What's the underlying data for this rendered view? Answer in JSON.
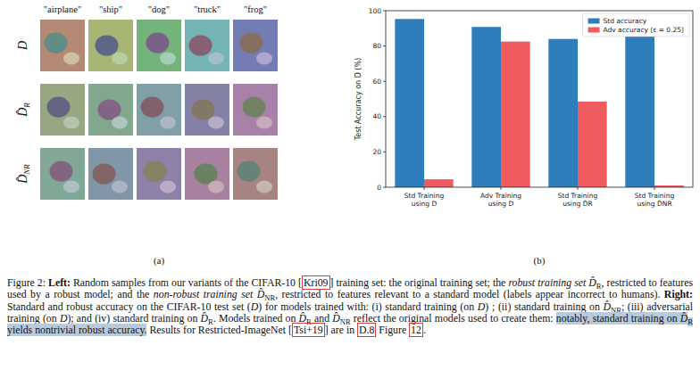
{
  "image_grid": {
    "columns": [
      "\"airplane\"",
      "\"ship\"",
      "\"dog\"",
      "\"truck\"",
      "\"frog\""
    ],
    "rows": [
      {
        "symbol": "D"
      },
      {
        "symbol": "D̂",
        "subscript": "R"
      },
      {
        "symbol": "D̂",
        "subscript": "NR"
      }
    ]
  },
  "panel_labels": [
    "(a)",
    "(b)"
  ],
  "chart_data": {
    "type": "bar",
    "y_label": "Test Accuracy on D (%)",
    "categories": [
      "Std Training\nusing D",
      "Adv Training\nusing D",
      "Std Training\nusing D̂R",
      "Std Training\nusing D̂NR"
    ],
    "series": [
      {
        "name": "Std accuracy",
        "color": "#2e7ebc",
        "values": [
          95.3,
          90.8,
          84.0,
          87.7
        ]
      },
      {
        "name": "Adv accuracy (ε = 0.25)",
        "color": "#ef5b5f",
        "values": [
          4.5,
          82.5,
          48.5,
          1.0
        ]
      }
    ],
    "ylim": [
      0,
      100
    ],
    "yticks": [
      0,
      20,
      40,
      60,
      80,
      100
    ],
    "grid": false,
    "legend": "upper right"
  },
  "caption": {
    "runs": [
      {
        "text": "Figure 2: ",
        "style": "plain"
      },
      {
        "text": "Left:",
        "style": "bold"
      },
      {
        "text": " Random samples from our variants of the CIFAR-10 [",
        "style": "plain"
      },
      {
        "text": "Kri09",
        "style": "link"
      },
      {
        "text": "] training set: the original training set; the ",
        "style": "plain"
      },
      {
        "text": "robust training set D̂",
        "style": "italic"
      },
      {
        "text": "R",
        "style": "sub"
      },
      {
        "text": ", restricted to features used by a robust model; and the ",
        "style": "plain"
      },
      {
        "text": "non-robust training set D̂",
        "style": "italic"
      },
      {
        "text": "NR",
        "style": "sub"
      },
      {
        "text": ", restricted to features relevant to a standard model (labels appear incorrect to humans). ",
        "style": "plain"
      },
      {
        "text": "Right:",
        "style": "bold"
      },
      {
        "text": " Standard and robust accuracy on the CIFAR-10 test set (",
        "style": "plain"
      },
      {
        "text": "D",
        "style": "italic"
      },
      {
        "text": ") for models trained with: (i) standard training (on ",
        "style": "plain"
      },
      {
        "text": "D",
        "style": "italic"
      },
      {
        "text": ") ; (ii) standard training on ",
        "style": "plain"
      },
      {
        "text": "D̂",
        "style": "italic"
      },
      {
        "text": "NR",
        "style": "sub"
      },
      {
        "text": "; (iii) adversarial training (on ",
        "style": "plain"
      },
      {
        "text": "D",
        "style": "italic"
      },
      {
        "text": "); and (iv) standard training on ",
        "style": "plain"
      },
      {
        "text": "D̂",
        "style": "italic"
      },
      {
        "text": "R",
        "style": "sub"
      },
      {
        "text": ". Models trained on ",
        "style": "plain"
      },
      {
        "text": "D̂",
        "style": "italic"
      },
      {
        "text": "R",
        "style": "sub"
      },
      {
        "text": " and ",
        "style": "plain"
      },
      {
        "text": "D̂",
        "style": "italic"
      },
      {
        "text": "NR",
        "style": "sub"
      },
      {
        "text": " reflect the original models used to create them: ",
        "style": "plain"
      },
      {
        "text": "notably, standard training on ",
        "style": "highlight"
      },
      {
        "text": "D̂",
        "style": "highlight-italic"
      },
      {
        "text": "R",
        "style": "highlight-sub"
      },
      {
        "text": " yields nontrivial robust accuracy.",
        "style": "highlight"
      },
      {
        "text": " Results for Restricted-ImageNet [",
        "style": "plain"
      },
      {
        "text": "Tsi+19",
        "style": "link"
      },
      {
        "text": "] are in ",
        "style": "plain"
      },
      {
        "text": "D.8",
        "style": "link"
      },
      {
        "text": " Figure ",
        "style": "plain"
      },
      {
        "text": "12",
        "style": "link"
      },
      {
        "text": ".",
        "style": "plain"
      }
    ]
  }
}
